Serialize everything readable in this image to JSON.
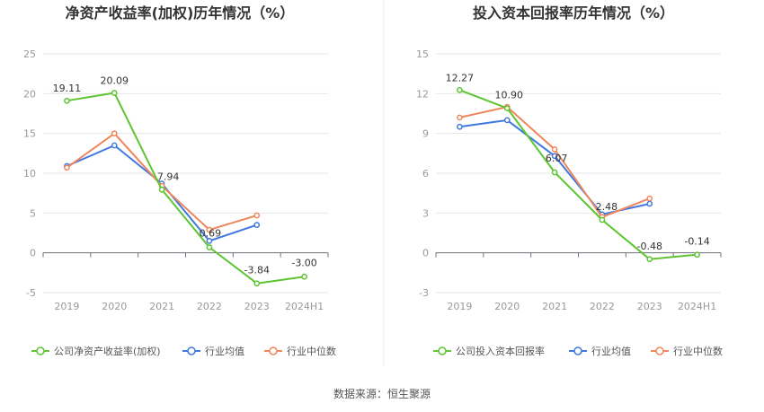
{
  "source_label": "数据来源：恒生聚源",
  "chart_data": [
    {
      "type": "line",
      "title": "净资产收益率(加权)历年情况（%）",
      "categories": [
        "2019",
        "2020",
        "2021",
        "2022",
        "2023",
        "2024H1"
      ],
      "yticks": [
        -5,
        0,
        5,
        10,
        15,
        20,
        25
      ],
      "ylim": [
        -5,
        25
      ],
      "grid": true,
      "legend_position": "bottom",
      "series": [
        {
          "name": "公司净资产收益率(加权)",
          "color": "#5cc531",
          "values": [
            19.11,
            20.09,
            7.94,
            0.69,
            -3.84,
            -3.0
          ],
          "labels": [
            "19.11",
            "20.09",
            "7.94",
            "0.69",
            "-3.84",
            "-3.00"
          ]
        },
        {
          "name": "行业均值",
          "color": "#3f78e0",
          "values": [
            10.9,
            13.5,
            8.7,
            1.5,
            3.5,
            null
          ]
        },
        {
          "name": "行业中位数",
          "color": "#f0865c",
          "values": [
            10.7,
            15.0,
            8.4,
            2.9,
            4.7,
            null
          ]
        }
      ]
    },
    {
      "type": "line",
      "title": "投入资本回报率历年情况（%）",
      "categories": [
        "2019",
        "2020",
        "2021",
        "2022",
        "2023",
        "2024H1"
      ],
      "yticks": [
        -3,
        0,
        3,
        6,
        9,
        12,
        15
      ],
      "ylim": [
        -3,
        15
      ],
      "grid": true,
      "legend_position": "bottom",
      "series": [
        {
          "name": "公司投入资本回报率",
          "color": "#5cc531",
          "values": [
            12.27,
            10.9,
            6.07,
            2.48,
            -0.48,
            -0.14
          ],
          "labels": [
            "12.27",
            "10.90",
            "6.07",
            "2.48",
            "-0.48",
            "-0.14"
          ]
        },
        {
          "name": "行业均值",
          "color": "#3f78e0",
          "values": [
            9.5,
            10.0,
            7.3,
            2.9,
            3.7,
            null
          ]
        },
        {
          "name": "行业中位数",
          "color": "#f0865c",
          "values": [
            10.2,
            11.0,
            7.8,
            2.7,
            4.1,
            null
          ]
        }
      ]
    }
  ]
}
